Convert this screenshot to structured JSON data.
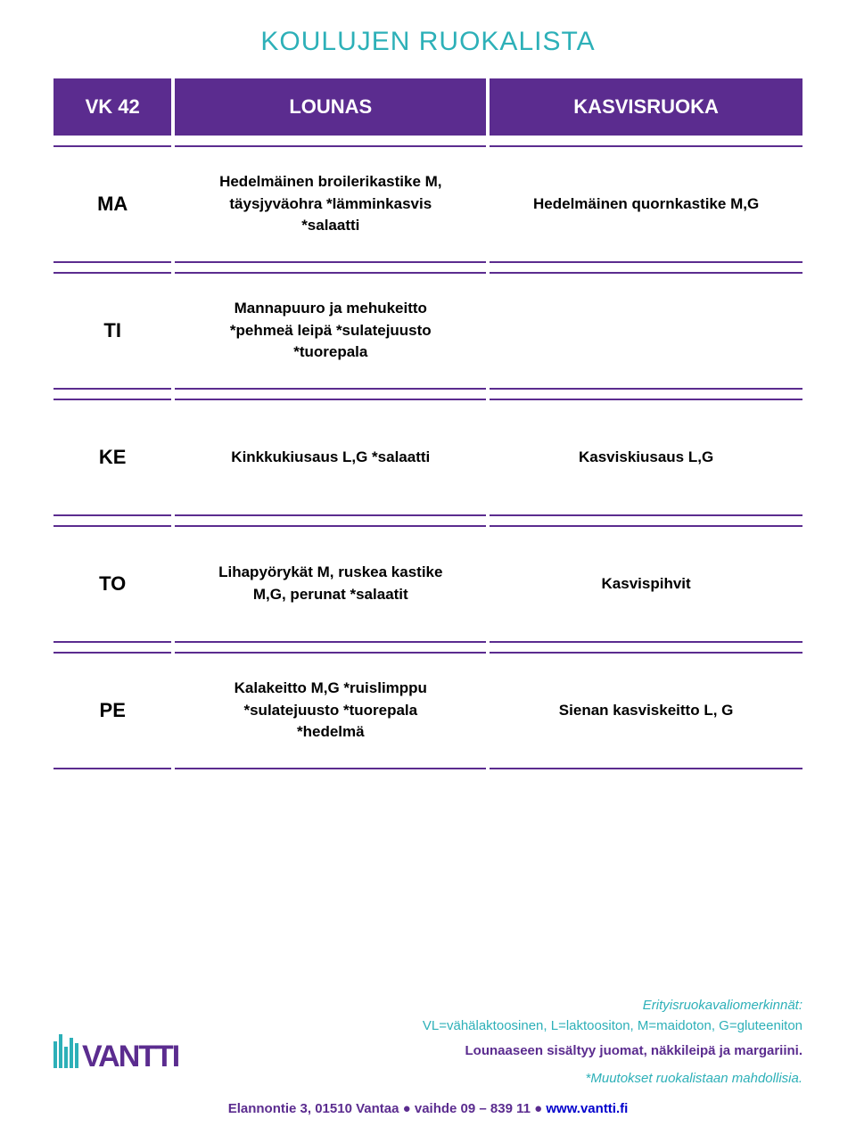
{
  "colors": {
    "accent_purple": "#5b2c8f",
    "teal": "#2db0b8",
    "row_border": "#5b2c8f",
    "title_color": "#2db0b8",
    "footer_text": "#2db0b8",
    "footer_link": "#0000cc"
  },
  "title": "KOULUJEN RUOKALISTA",
  "header": {
    "week": "VK 42",
    "lounas": "LOUNAS",
    "kasvis": "KASVISRUOKA"
  },
  "days": [
    {
      "code": "MA",
      "lounas": "Hedelmäinen broilerikastike M,\ntäysjyväohra *lämminkasvis\n*salaatti",
      "kasvis": "Hedelmäinen quornkastike M,G"
    },
    {
      "code": "TI",
      "lounas": "Mannapuuro ja mehukeitto\n*pehmeä leipä *sulatejuusto\n*tuorepala",
      "kasvis": ""
    },
    {
      "code": "KE",
      "lounas": "Kinkkukiusaus L,G *salaatti",
      "kasvis": "Kasviskiusaus L,G"
    },
    {
      "code": "TO",
      "lounas": "Lihapyörykät M, ruskea kastike\nM,G, perunat *salaatit",
      "kasvis": "Kasvispihvit"
    },
    {
      "code": "PE",
      "lounas": "Kalakeitto M,G *ruislimppu\n*sulatejuusto *tuorepala\n*hedelmä",
      "kasvis": "Sienan kasviskeitto L, G"
    }
  ],
  "footer": {
    "legend_title": "Erityisruokavaliomerkinnät:",
    "legend_line": "VL=vähälaktoosinen, L=laktoositon, M=maidoton, G=gluteeniton",
    "included": "Lounaaseen sisältyy juomat, näkkileipä ja margariini.",
    "note": "*Muutokset ruokalistaan mahdollisia.",
    "address_pre": "Elannontie 3, 01510 Vantaa ",
    "bullet": "●",
    "phone": " vaihde 09 – 839 11 ",
    "url": " www.vantti.fi"
  },
  "logo_text": "VANTTI"
}
